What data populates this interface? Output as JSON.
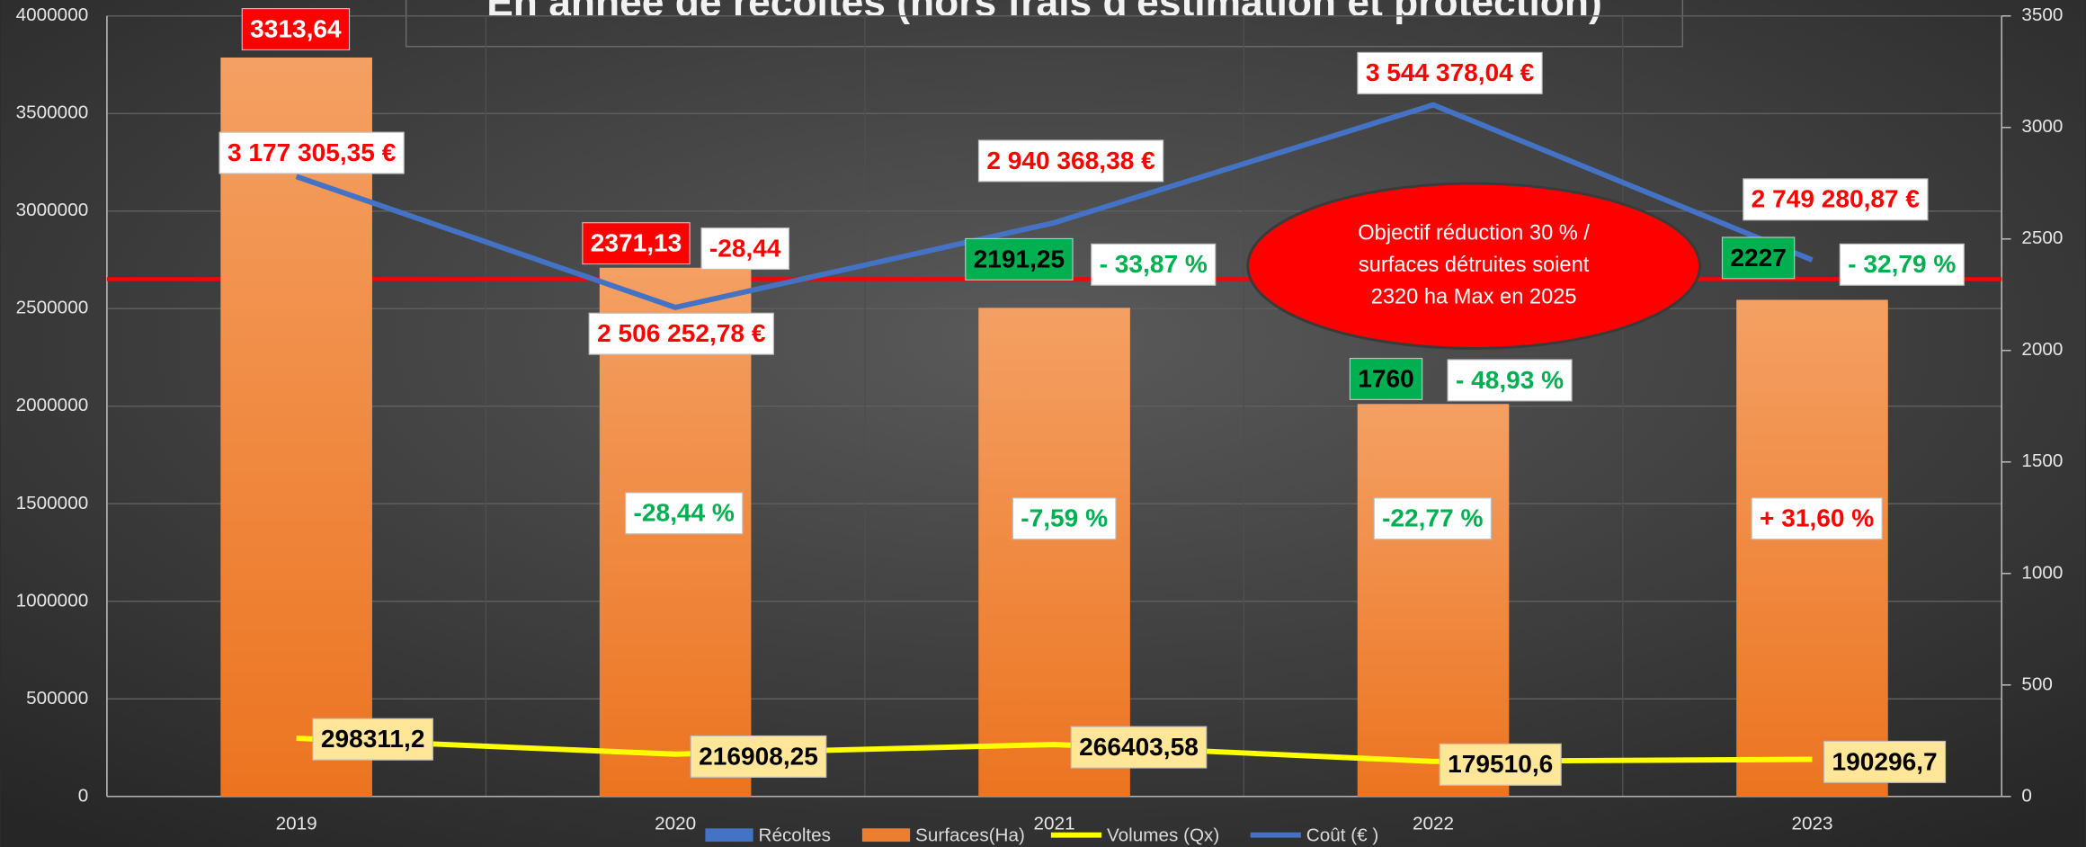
{
  "chart_data": {
    "type": "bar",
    "title": "En année de récoltes (hors frais d'estimation et protection)",
    "categories": [
      "2019",
      "2020",
      "2021",
      "2022",
      "2023"
    ],
    "ylim": [
      0,
      4000000
    ],
    "yticks": [
      0,
      500000,
      1000000,
      1500000,
      2000000,
      2500000,
      3000000,
      3500000,
      4000000
    ],
    "y2lim": [
      0,
      3500
    ],
    "y2ticks": [
      0,
      500,
      1000,
      1500,
      2000,
      2500,
      3000,
      3500
    ],
    "grid": true,
    "legend": "bottom",
    "series": [
      {
        "name": "Récoltes",
        "type": "bar",
        "color": "#4472c4",
        "values": [
          null,
          null,
          null,
          null,
          null
        ]
      },
      {
        "name": "Surfaces(Ha)",
        "type": "bar",
        "axis": "y2",
        "color": "#ed7d31",
        "values": [
          3313.64,
          2371.13,
          2191.25,
          1760,
          2227
        ],
        "value_labels": [
          "3313,64",
          "2371,13",
          "2191,25",
          "1760",
          "2227"
        ],
        "value_label_colors": [
          "#ff0000",
          "#ff0000",
          "#00b050",
          "#00b050",
          "#00b050"
        ]
      },
      {
        "name": "Volumes (Qx)",
        "type": "line",
        "color": "#ffff00",
        "values": [
          298311.2,
          216908.25,
          266403.58,
          179510.6,
          190296.7
        ],
        "value_labels": [
          "298311,2",
          "216908,25",
          "266403,58",
          "179510,6",
          "190296,7"
        ]
      },
      {
        "name": "Coût (€ )",
        "type": "line",
        "color": "#4472c4",
        "values": [
          3177305.35,
          2506252.78,
          2940368.38,
          3544378.04,
          2749280.87
        ],
        "value_labels": [
          "3 177 305,35 €",
          "2 506 252,78 €",
          "2 940 368,38 €",
          "3 544 378,04 €",
          "2 749 280,87 €"
        ]
      }
    ],
    "reference_line": {
      "value": 2320,
      "axis": "y2",
      "color": "#ff0000"
    },
    "target_note": [
      "Objectif réduction 30 % /",
      "surfaces détruites soient",
      "2320 ha Max en 2025"
    ],
    "annotations": [
      {
        "text": "-28,44",
        "color": "#ff0000"
      },
      {
        "text": "- 33,87 %",
        "color": "#00b050"
      },
      {
        "text": "- 48,93 %",
        "color": "#00b050"
      },
      {
        "text": "- 32,79 %",
        "color": "#00b050"
      },
      {
        "text": "-28,44 %",
        "color": "#00b050"
      },
      {
        "text": "-7,59 %",
        "color": "#00b050"
      },
      {
        "text": "-22,77 %",
        "color": "#00b050"
      },
      {
        "text": "+ 31,60 %",
        "color": "#ff0000"
      }
    ]
  }
}
